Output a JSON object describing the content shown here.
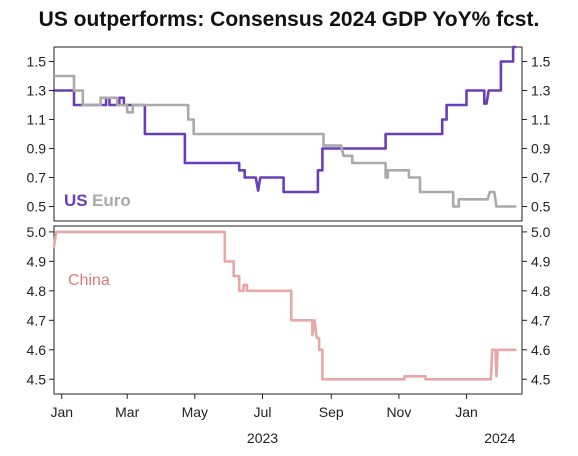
{
  "title": "US outperforms: Consensus 2024 GDP YoY% fcst.",
  "chart_data": [
    {
      "type": "line",
      "panel": "top",
      "ylim": [
        0.4,
        1.6
      ],
      "y_ticks": [
        "1.5",
        "1.3",
        "1.1",
        "0.9",
        "0.7",
        "0.5"
      ],
      "y_tick_values": [
        1.5,
        1.3,
        1.1,
        0.9,
        0.7,
        0.5
      ],
      "x_range": [
        "2022-12-25",
        "2024-02-20"
      ],
      "legend_placement": "bottom-left",
      "series": [
        {
          "name": "US",
          "color": "#6a3eb8",
          "points": [
            [
              "2022-12-25",
              1.3
            ],
            [
              "2023-01-12",
              1.3
            ],
            [
              "2023-01-12",
              1.2
            ],
            [
              "2023-02-10",
              1.2
            ],
            [
              "2023-02-10",
              1.25
            ],
            [
              "2023-02-13",
              1.25
            ],
            [
              "2023-02-13",
              1.2
            ],
            [
              "2023-02-22",
              1.2
            ],
            [
              "2023-02-22",
              1.25
            ],
            [
              "2023-02-26",
              1.25
            ],
            [
              "2023-02-26",
              1.2
            ],
            [
              "2023-03-17",
              1.2
            ],
            [
              "2023-03-17",
              1.0
            ],
            [
              "2023-04-22",
              1.0
            ],
            [
              "2023-04-22",
              0.8
            ],
            [
              "2023-06-10",
              0.8
            ],
            [
              "2023-06-10",
              0.75
            ],
            [
              "2023-06-15",
              0.75
            ],
            [
              "2023-06-15",
              0.7
            ],
            [
              "2023-06-25",
              0.7
            ],
            [
              "2023-06-27",
              0.61
            ],
            [
              "2023-06-29",
              0.7
            ],
            [
              "2023-07-20",
              0.7
            ],
            [
              "2023-07-20",
              0.6
            ],
            [
              "2023-08-20",
              0.6
            ],
            [
              "2023-08-20",
              0.75
            ],
            [
              "2023-08-24",
              0.75
            ],
            [
              "2023-08-24",
              0.9
            ],
            [
              "2023-10-20",
              0.9
            ],
            [
              "2023-10-20",
              1.0
            ],
            [
              "2023-12-10",
              1.0
            ],
            [
              "2023-12-10",
              1.1
            ],
            [
              "2023-12-14",
              1.1
            ],
            [
              "2023-12-14",
              1.2
            ],
            [
              "2024-01-01",
              1.2
            ],
            [
              "2024-01-01",
              1.3
            ],
            [
              "2024-01-17",
              1.3
            ],
            [
              "2024-01-17",
              1.21
            ],
            [
              "2024-01-19",
              1.21
            ],
            [
              "2024-01-21",
              1.3
            ],
            [
              "2024-02-01",
              1.3
            ],
            [
              "2024-02-01",
              1.5
            ],
            [
              "2024-02-12",
              1.5
            ],
            [
              "2024-02-12",
              1.6
            ],
            [
              "2024-02-14",
              1.6
            ]
          ]
        },
        {
          "name": "Euro",
          "color": "#aaaaaa",
          "points": [
            [
              "2022-12-25",
              1.4
            ],
            [
              "2023-01-12",
              1.4
            ],
            [
              "2023-01-12",
              1.3
            ],
            [
              "2023-01-20",
              1.3
            ],
            [
              "2023-01-20",
              1.2
            ],
            [
              "2023-02-05",
              1.2
            ],
            [
              "2023-02-05",
              1.25
            ],
            [
              "2023-02-20",
              1.25
            ],
            [
              "2023-02-20",
              1.2
            ],
            [
              "2023-03-01",
              1.2
            ],
            [
              "2023-03-01",
              1.15
            ],
            [
              "2023-03-06",
              1.15
            ],
            [
              "2023-03-06",
              1.2
            ],
            [
              "2023-04-25",
              1.2
            ],
            [
              "2023-04-25",
              1.1
            ],
            [
              "2023-04-30",
              1.1
            ],
            [
              "2023-04-30",
              1.0
            ],
            [
              "2023-08-25",
              1.0
            ],
            [
              "2023-08-25",
              0.92
            ],
            [
              "2023-09-10",
              0.92
            ],
            [
              "2023-09-12",
              0.85
            ],
            [
              "2023-09-20",
              0.85
            ],
            [
              "2023-09-20",
              0.8
            ],
            [
              "2023-10-20",
              0.8
            ],
            [
              "2023-10-20",
              0.7
            ],
            [
              "2023-10-22",
              0.7
            ],
            [
              "2023-10-22",
              0.75
            ],
            [
              "2023-11-10",
              0.75
            ],
            [
              "2023-11-10",
              0.7
            ],
            [
              "2023-11-20",
              0.7
            ],
            [
              "2023-11-20",
              0.6
            ],
            [
              "2023-12-20",
              0.6
            ],
            [
              "2023-12-20",
              0.5
            ],
            [
              "2023-12-25",
              0.5
            ],
            [
              "2023-12-25",
              0.55
            ],
            [
              "2024-01-20",
              0.55
            ],
            [
              "2024-01-22",
              0.6
            ],
            [
              "2024-01-26",
              0.6
            ],
            [
              "2024-01-28",
              0.5
            ],
            [
              "2024-02-14",
              0.5
            ]
          ]
        }
      ]
    },
    {
      "type": "line",
      "panel": "bottom",
      "ylim": [
        4.45,
        5.02
      ],
      "y_ticks": [
        "5.0",
        "4.9",
        "4.8",
        "4.7",
        "4.6",
        "4.5"
      ],
      "y_tick_values": [
        5.0,
        4.9,
        4.8,
        4.7,
        4.6,
        4.5
      ],
      "x_range": [
        "2022-12-25",
        "2024-02-20"
      ],
      "legend_placement": "top-left",
      "series": [
        {
          "name": "China",
          "color": "#e8a8a8",
          "points": [
            [
              "2022-12-25",
              4.95
            ],
            [
              "2022-12-27",
              5.0
            ],
            [
              "2023-05-28",
              5.0
            ],
            [
              "2023-05-28",
              4.9
            ],
            [
              "2023-06-05",
              4.9
            ],
            [
              "2023-06-05",
              4.85
            ],
            [
              "2023-06-10",
              4.85
            ],
            [
              "2023-06-10",
              4.8
            ],
            [
              "2023-06-14",
              4.8
            ],
            [
              "2023-06-14",
              4.82
            ],
            [
              "2023-06-17",
              4.82
            ],
            [
              "2023-06-17",
              4.8
            ],
            [
              "2023-07-27",
              4.8
            ],
            [
              "2023-07-27",
              4.7
            ],
            [
              "2023-08-15",
              4.7
            ],
            [
              "2023-08-15",
              4.65
            ],
            [
              "2023-08-17",
              4.7
            ],
            [
              "2023-08-19",
              4.64
            ],
            [
              "2023-08-21",
              4.64
            ],
            [
              "2023-08-21",
              4.6
            ],
            [
              "2023-08-24",
              4.6
            ],
            [
              "2023-08-24",
              4.5
            ],
            [
              "2023-11-06",
              4.5
            ],
            [
              "2023-11-06",
              4.51
            ],
            [
              "2023-11-25",
              4.51
            ],
            [
              "2023-11-25",
              4.5
            ],
            [
              "2024-01-23",
              4.5
            ],
            [
              "2024-01-24",
              4.6
            ],
            [
              "2024-01-27",
              4.6
            ],
            [
              "2024-01-28",
              4.51
            ],
            [
              "2024-01-29",
              4.6
            ],
            [
              "2024-02-14",
              4.6
            ]
          ]
        }
      ]
    }
  ],
  "x_axis": {
    "ticks": [
      {
        "label": "Jan",
        "date": "2023-01-01"
      },
      {
        "label": "Mar",
        "date": "2023-03-01"
      },
      {
        "label": "May",
        "date": "2023-05-01"
      },
      {
        "label": "Jul",
        "date": "2023-07-01"
      },
      {
        "label": "Sep",
        "date": "2023-09-01"
      },
      {
        "label": "Nov",
        "date": "2023-11-01"
      },
      {
        "label": "Jan",
        "date": "2024-01-01"
      }
    ],
    "years": [
      {
        "label": "2023",
        "date": "2023-07-01"
      },
      {
        "label": "2024",
        "date": "2024-01-31"
      }
    ]
  }
}
